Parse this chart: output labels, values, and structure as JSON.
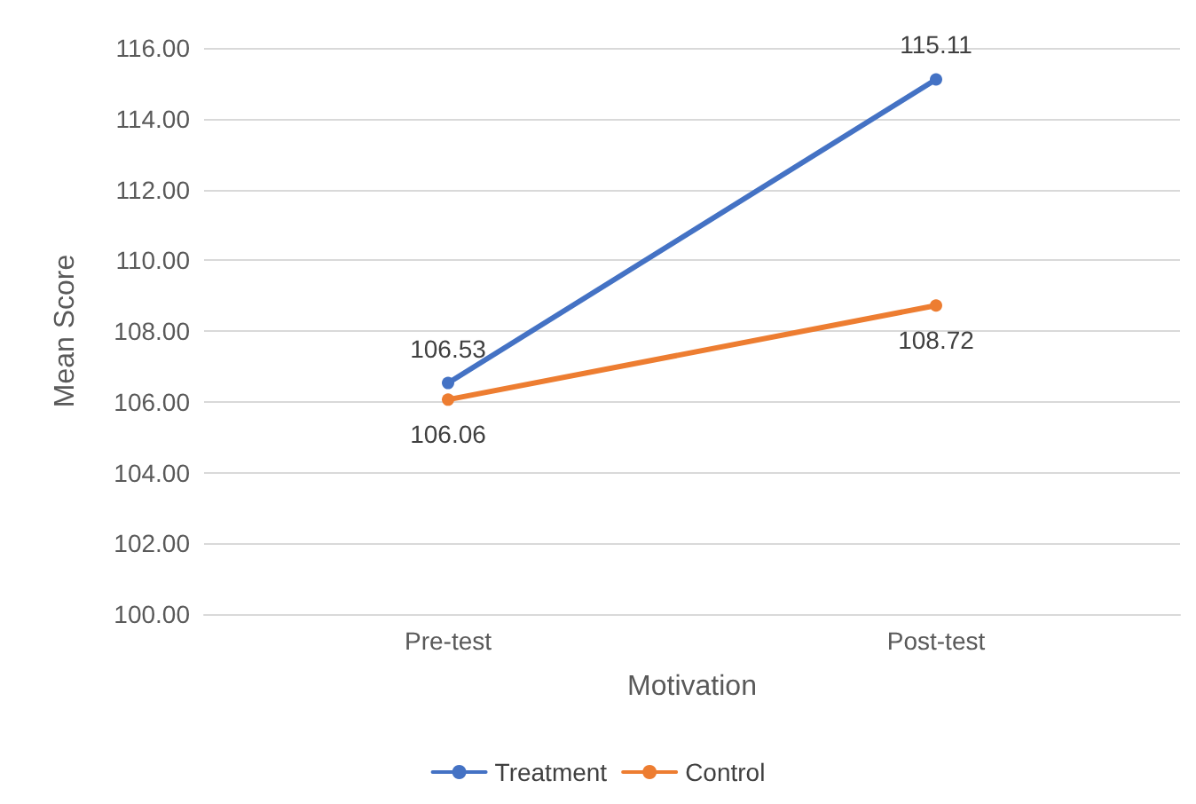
{
  "chart_data": {
    "type": "line",
    "xlabel": "Motivation",
    "ylabel": "Mean Score",
    "categories": [
      "Pre-test",
      "Post-test"
    ],
    "series": [
      {
        "name": "Treatment",
        "color": "#4472c4",
        "values": [
          106.53,
          115.11
        ]
      },
      {
        "name": "Control",
        "color": "#ed7d31",
        "values": [
          106.06,
          108.72
        ]
      }
    ],
    "ylim": [
      100,
      116
    ],
    "yticks": [
      {
        "value": 100,
        "label": "100.00"
      },
      {
        "value": 102,
        "label": "102.00"
      },
      {
        "value": 104,
        "label": "104.00"
      },
      {
        "value": 106,
        "label": "106.00"
      },
      {
        "value": 108,
        "label": "108.00"
      },
      {
        "value": 110,
        "label": "110.00"
      },
      {
        "value": 112,
        "label": "112.00"
      },
      {
        "value": 114,
        "label": "114.00"
      },
      {
        "value": 116,
        "label": "116.00"
      }
    ],
    "grid": "y",
    "legend": "bottom",
    "marker": "circle",
    "line_style": "solid",
    "data_labels": true
  }
}
